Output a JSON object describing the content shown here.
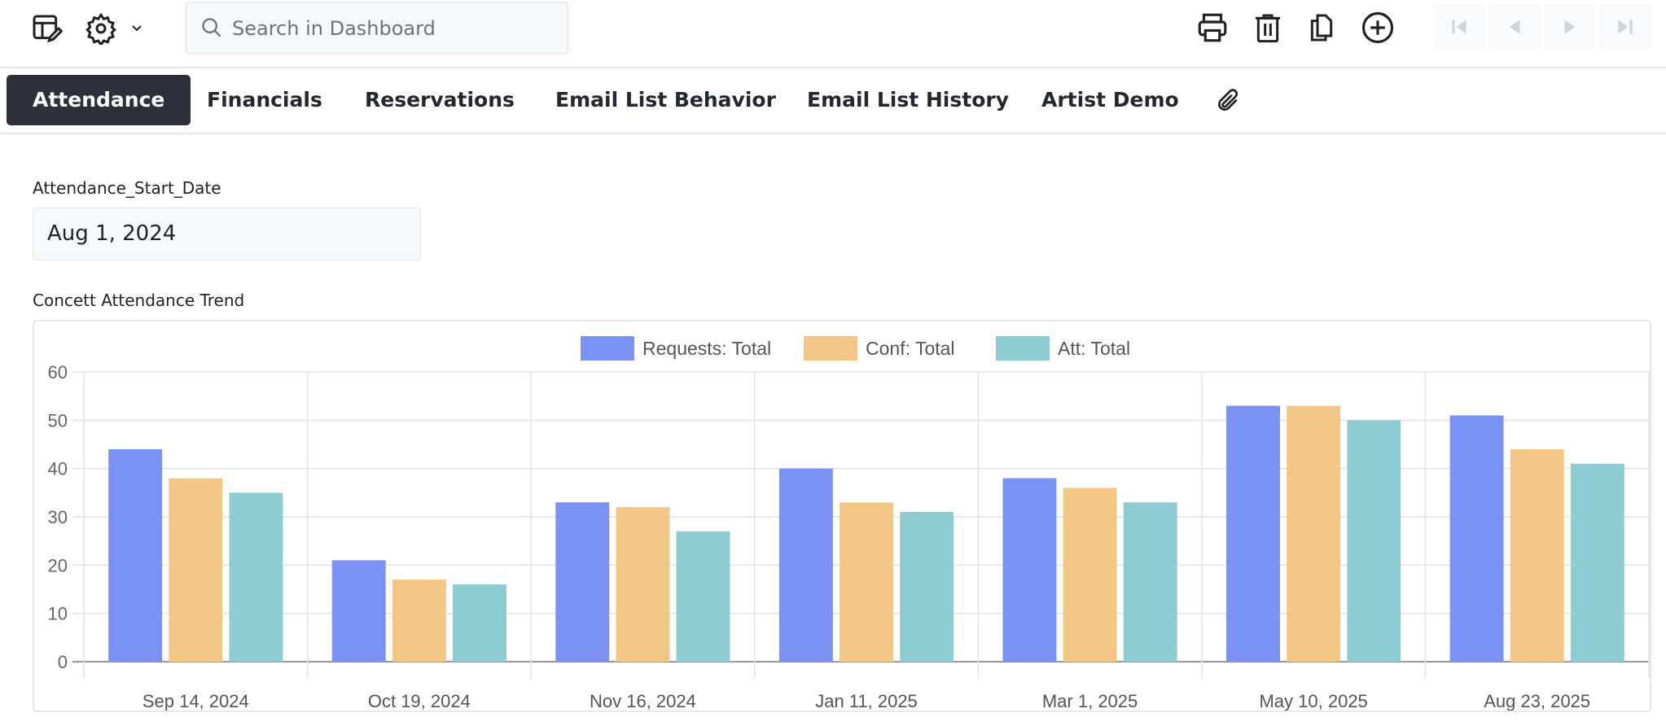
{
  "toolbar": {
    "icons": [
      "edit-dashboard-icon",
      "gear-icon",
      "chevron-down-icon",
      "print-icon",
      "trash-icon",
      "duplicate-icon",
      "add-circle-icon",
      "first-page-icon",
      "previous-page-icon",
      "next-page-icon",
      "last-page-icon"
    ],
    "search_placeholder": "Search in Dashboard",
    "search_value": ""
  },
  "tabs": [
    {
      "label": "Attendance",
      "active": true
    },
    {
      "label": "Financials",
      "active": false
    },
    {
      "label": "Reservations",
      "active": false
    },
    {
      "label": "Email List Behavior",
      "active": false
    },
    {
      "label": "Email List History",
      "active": false
    },
    {
      "label": "Artist Demo",
      "active": false
    }
  ],
  "attachment_icon": "paperclip-icon",
  "filter": {
    "label": "Attendance_Start_Date",
    "value": "Aug 1, 2024"
  },
  "chart_title": "Concett Attendance Trend",
  "chart_data": {
    "type": "bar",
    "title": "Concett Attendance Trend",
    "xlabel": "",
    "ylabel": "",
    "ylim": [
      0,
      60
    ],
    "yticks": [
      "0",
      "10",
      "20",
      "30",
      "40",
      "50",
      "60"
    ],
    "grid": true,
    "legend_position": "top",
    "categories": [
      "Sep 14, 2024",
      "Oct 19, 2024",
      "Nov 16, 2024",
      "Jan 11, 2025",
      "Mar 1, 2025",
      "May 10, 2025",
      "Aug 23, 2025"
    ],
    "series": [
      {
        "name": "Requests: Total",
        "color": "#7b91f3",
        "values": [
          44,
          21,
          33,
          40,
          38,
          53,
          51
        ]
      },
      {
        "name": "Conf: Total",
        "color": "#f2c785",
        "values": [
          38,
          17,
          32,
          33,
          36,
          53,
          44
        ]
      },
      {
        "name": "Att: Total",
        "color": "#8fcbd3",
        "values": [
          35,
          16,
          27,
          31,
          33,
          50,
          41
        ]
      }
    ]
  }
}
